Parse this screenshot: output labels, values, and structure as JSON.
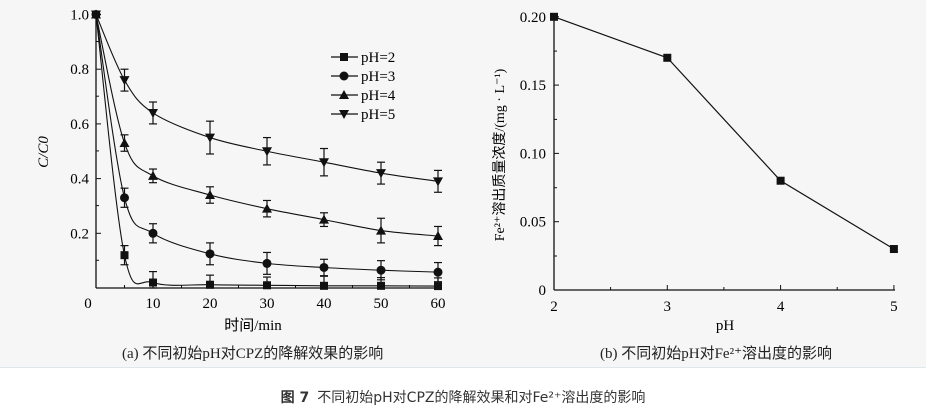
{
  "chart_data": [
    {
      "type": "line",
      "title": "(a) 不同初始pH对CPZ的降解效果的影响",
      "xlabel": "时间/min",
      "ylabel": "C/C0",
      "xlim": [
        0,
        60
      ],
      "ylim": [
        0,
        1.0
      ],
      "xticks": [
        0,
        10,
        20,
        30,
        40,
        50,
        60
      ],
      "yticks": [
        "0.2",
        "0.4",
        "0.6",
        "0.8",
        "1.0"
      ],
      "x": [
        0,
        5,
        10,
        20,
        30,
        40,
        50,
        60
      ],
      "legend": "top-right",
      "series": [
        {
          "name": "pH=2",
          "marker": "square",
          "values": [
            1,
            0.12,
            0.02,
            0.012,
            0.01,
            0.008,
            0.008,
            0.007
          ],
          "errors": [
            0,
            0.035,
            0.04,
            0.035,
            0.03,
            0.035,
            0.03,
            0.03
          ]
        },
        {
          "name": "pH=3",
          "marker": "circle",
          "values": [
            1,
            0.33,
            0.2,
            0.125,
            0.09,
            0.075,
            0.065,
            0.058
          ],
          "errors": [
            0,
            0.035,
            0.035,
            0.04,
            0.04,
            0.03,
            0.035,
            0.035
          ]
        },
        {
          "name": "pH=4",
          "marker": "triangle-up",
          "values": [
            1,
            0.53,
            0.41,
            0.34,
            0.29,
            0.25,
            0.21,
            0.19
          ],
          "errors": [
            0,
            0.03,
            0.025,
            0.03,
            0.03,
            0.025,
            0.045,
            0.035
          ]
        },
        {
          "name": "pH=5",
          "marker": "triangle-down",
          "values": [
            1,
            0.76,
            0.64,
            0.55,
            0.5,
            0.46,
            0.42,
            0.39
          ],
          "errors": [
            0,
            0.04,
            0.04,
            0.06,
            0.05,
            0.05,
            0.04,
            0.04
          ]
        }
      ]
    },
    {
      "type": "line",
      "title": "(b) 不同初始pH对Fe²⁺溶出度的影响",
      "xlabel": "pH",
      "ylabel": "Fe²⁺溶出质量浓度/(mg · L⁻¹)",
      "xlim": [
        2,
        5
      ],
      "ylim": [
        0,
        0.2
      ],
      "xticks": [
        "2",
        "3",
        "4",
        "5"
      ],
      "yticks": [
        "0",
        "0.05",
        "0.10",
        "0.15",
        "0.20"
      ],
      "series": [
        {
          "name": "Fe2+",
          "marker": "square",
          "x": [
            2,
            3,
            4,
            5
          ],
          "values": [
            0.2,
            0.17,
            0.08,
            0.03
          ]
        }
      ]
    }
  ],
  "figure_caption": {
    "label": "图 7",
    "text": "不同初始pH对CPZ的降解效果和对Fe²⁺溶出度的影响"
  }
}
